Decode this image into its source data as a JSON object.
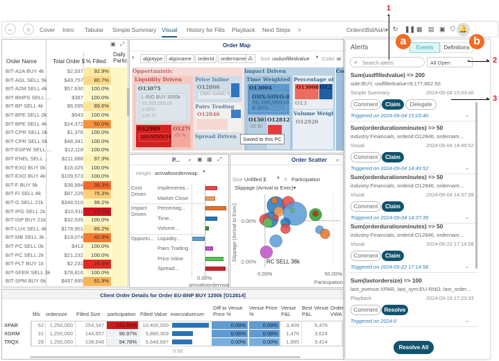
{
  "toolbar": {
    "tabs": [
      "Cover",
      "Intro",
      "Tabular",
      "Simple Summary",
      "Visual",
      "History for Fills",
      "Playback",
      "Next Steps"
    ],
    "active_tab": "Visual",
    "more_label": ">",
    "datasource": "Orders\\BidAsk\\",
    "icons": [
      "back-icon",
      "home-icon",
      "refresh-icon",
      "pause-icon",
      "snapshot-icon",
      "pdf-icon",
      "excel-icon",
      "bookmark-icon",
      "bell-icon"
    ]
  },
  "order_table": {
    "columns": [
      "Order Name",
      "Total Order $",
      "% Filled",
      "Daily Partic"
    ],
    "rows": [
      {
        "name": "BIT-A2A BUY 4k",
        "total": "$2,037",
        "filled": "92.9%",
        "color": "#fdeba5"
      },
      {
        "name": "BIT-AGL SELL 5k",
        "total": "$49,757",
        "filled": "80.7%",
        "color": "#fdd988"
      },
      {
        "name": "BIT-A2M SELL 4k",
        "total": "$57,630",
        "filled": "100.0%",
        "color": "#fef8c9"
      },
      {
        "name": "BIT-BMPS SELL ...",
        "total": "$387",
        "filled": "100.0%",
        "color": "#fef8c9"
      },
      {
        "name": "BIT-BP SELL 4k",
        "total": "$6,095",
        "filled": "89.6%",
        "color": "#fde49a"
      },
      {
        "name": "BIT-BPE SELL 0k",
        "total": "$543",
        "filled": "100.0%",
        "color": "#fef8c9"
      },
      {
        "name": "BIT-BPE SELL 4k",
        "total": "$24,372",
        "filled": "50.0%",
        "color": "#f7923a"
      },
      {
        "name": "BIT-CPR SELL 0k",
        "total": "$1,378",
        "filled": "100.0%",
        "color": "#fef8c9"
      },
      {
        "name": "BIT-CPR SELL 6k",
        "total": "$48,341",
        "filled": "100.0%",
        "color": "#fef8c9"
      },
      {
        "name": "BIT-EGPW SELL ...",
        "total": "$12,118",
        "filled": "100.0%",
        "color": "#fef8c9"
      },
      {
        "name": "BIT-ENEL SELL ...",
        "total": "$211,688",
        "filled": "97.3%",
        "color": "#fef2b4"
      },
      {
        "name": "BIT-EXO BUY 0k",
        "total": "$16,025",
        "filled": "100.0%",
        "color": "#fef8c9"
      },
      {
        "name": "BIT-EXO BUY 4k",
        "total": "$109,573",
        "filled": "100.0%",
        "color": "#fef8c9"
      },
      {
        "name": "BIT-F BUY 9k",
        "total": "$38,994",
        "filled": "39.3%",
        "color": "#f3692c"
      },
      {
        "name": "BIT-FI SELL 8k",
        "total": "$87,225",
        "filled": "75.3%",
        "color": "#fdce7b"
      },
      {
        "name": "BIT-G SELL 21k",
        "total": "$348,010",
        "filled": "99.2%",
        "color": "#fef6c2"
      },
      {
        "name": "BIT-IPG SELL 2k",
        "total": "$10,911",
        "filled": "13.3%",
        "color": "#d0111f"
      },
      {
        "name": "BIT-ISP BUY 21k",
        "total": "$32,535",
        "filled": "100.0%",
        "color": "#fef8c9"
      },
      {
        "name": "BIT-LUX SELL 4k",
        "total": "$178,901",
        "filled": "89.2%",
        "color": "#fde49a"
      },
      {
        "name": "BIT-MB SELL 3k",
        "total": "$19,074",
        "filled": "42.9%",
        "color": "#f47932"
      },
      {
        "name": "BIT-PC SELL 0k",
        "total": "$413",
        "filled": "100.0%",
        "color": "#fef8c9"
      },
      {
        "name": "BIT-PC SELL 2k",
        "total": "$21,232",
        "filled": "100.0%",
        "color": "#fef8c9"
      },
      {
        "name": "BIT-PLT BUY 1k",
        "total": "$2,231",
        "filled": "26.4%",
        "color": "#e12b22"
      },
      {
        "name": "BIT-SFER SELL 3k",
        "total": "$78,816",
        "filled": "100.0%",
        "color": "#fef8c9"
      },
      {
        "name": "BIT-SPM BUY 6k",
        "total": "$497,695",
        "filled": "61.9%",
        "color": "#fbb35a"
      }
    ]
  },
  "order_map": {
    "title": "Order Map",
    "chips": [
      "algotype",
      "algoname",
      "orderid",
      "ordername"
    ],
    "size_label": "Size",
    "size_value": "usdunfilledvalue",
    "color_label": "Color",
    "color_value": "ar",
    "groups": {
      "opportunistic": "Opportunistic",
      "liquidity": "Liquidity Driven",
      "price_inline": "Price Inline",
      "pairs": "Pairs Trading",
      "spread": "Spread Driven",
      "impact": "Impact Driven",
      "twap": "Time Weighted A",
      "pct": "Percentage of",
      "volume": "Volume Weigh",
      "cost": "Cos",
      "cost_sub": "Im",
      "market": "Ma"
    },
    "cells": {
      "o13075": "O13075",
      "o13075_detail": [
        "L-RIO BUY 3000k",
        "93,300,000.00",
        "0.06%",
        "229.37"
      ],
      "o12989": "O12989",
      "o12989_detail": "SIX-NOVN SE",
      "o1279": "O1279",
      "o1279_detail": "XE-N",
      "o12806": "O12806",
      "o12806_detail": "OMX-SAND E",
      "o12846": "O12846",
      "o13004": "O13004",
      "o13004_detail": [
        "OMX-NOVO-B",
        "56,400,000.00",
        "0.30%"
      ],
      "o1301": "O1301",
      "o1301_detail": "XE-B/",
      "o12812": "O12812",
      "o13008": "O13008",
      "o12x": "O12",
      "o13x": "O13",
      "o12920": "O12920",
      "cost_o": "O"
    },
    "tooltip": "Saved to this PC"
  },
  "bar_panel": {
    "title": "P...",
    "height_label": "Height",
    "height_value": "arrivaltoordervwap",
    "axis_tick": "0.00%",
    "axis_label": "arrivaltoordervwa",
    "groups": [
      {
        "name": "Cost Driven",
        "items": [
          {
            "label": "Implementa...",
            "value": 0.55,
            "color": "#e8474a"
          },
          {
            "label": "Market Close",
            "value": 0.45,
            "color": "#fb9a52"
          }
        ]
      },
      {
        "name": "Impact Driven",
        "items": [
          {
            "label": "Percentag...",
            "value": 1.0,
            "color": "#e4732a"
          },
          {
            "label": "Time...",
            "value": 0.55,
            "color": "#2178be"
          },
          {
            "label": "Volume...",
            "value": 0.15,
            "color": "#2ca02c"
          }
        ]
      },
      {
        "name": "Opportu...",
        "items": [
          {
            "label": "Liquidity...",
            "value": -0.65,
            "color": "#5b9bd5"
          },
          {
            "label": "Pairs Trading",
            "value": 0.35,
            "color": "#c050c8"
          },
          {
            "label": "Price Inline",
            "value": 0.85,
            "color": "#59c459"
          },
          {
            "label": "Spread...",
            "value": 0.95,
            "color": "#d2222a"
          }
        ]
      }
    ]
  },
  "scatter": {
    "title": "Order Scatter",
    "size_label": "Size",
    "size_value": "Unfilled $",
    "x_label": "X",
    "x_value": "Participation",
    "y_value": "Slippage (Arrival to Exec)",
    "y_axis_title": "Slippage (Arrival to Exec)",
    "x_axis_title": "Participation",
    "y_ticks": [
      "0.00%",
      "-2.00%"
    ],
    "x_ticks": [
      "0.00%",
      "50.00%"
    ],
    "annotation": "RC SELL 38k"
  },
  "chart_data": {
    "type": "scatter",
    "title": "Order Scatter",
    "xlabel": "Participation",
    "ylabel": "Slippage (Arrival to Exec)",
    "xlim": [
      -5,
      55
    ],
    "ylim": [
      -2.3,
      1.3
    ],
    "points": [
      {
        "x": 8,
        "y": 0.75,
        "r": 13,
        "color": "#2178be"
      },
      {
        "x": 17,
        "y": 0.9,
        "r": 9,
        "color": "#e8474a"
      },
      {
        "x": 22,
        "y": 0.35,
        "r": 17,
        "color": "#5b9bd5"
      },
      {
        "x": 4,
        "y": 0.05,
        "r": 11,
        "color": "#2178be"
      },
      {
        "x": 0,
        "y": 0.05,
        "r": 8,
        "color": "#e8474a"
      },
      {
        "x": 2,
        "y": -0.1,
        "r": 7,
        "color": "#59c459"
      },
      {
        "x": 10,
        "y": 0.45,
        "r": 7,
        "color": "#fb9a52"
      },
      {
        "x": 7,
        "y": 1.0,
        "r": 5,
        "color": "#e4732a"
      },
      {
        "x": 37,
        "y": 0.3,
        "r": 9,
        "color": "#2ca02c"
      },
      {
        "x": 37,
        "y": 0.35,
        "r": 4,
        "color": "#d2222a"
      },
      {
        "x": 15,
        "y": -0.1,
        "r": 7,
        "color": "#2178be"
      },
      {
        "x": 15,
        "y": -0.4,
        "r": 7,
        "color": "#e8474a"
      },
      {
        "x": 40,
        "y": -0.45,
        "r": 6,
        "color": "#5b9bd5"
      },
      {
        "x": 44,
        "y": -0.65,
        "r": 7,
        "color": "#e4732a"
      },
      {
        "x": 8,
        "y": -1.0,
        "r": 9,
        "color": "#5b9bd5"
      },
      {
        "x": 1,
        "y": -1.55,
        "r": 9,
        "color": "#c050c8"
      },
      {
        "x": 8,
        "y": 0.15,
        "r": 4,
        "color": "#e8474a"
      },
      {
        "x": 20,
        "y": 0.5,
        "r": 3,
        "color": "#59c459"
      }
    ]
  },
  "client_details": {
    "title": "Client Order Details for Order EU-BNP BUY 1250k [O12814]",
    "columns": [
      "fills",
      "ordersize",
      "Filled Size",
      "participation",
      "Filled Value",
      "execvaluecum",
      "Diff to Venue Price %",
      "Diff to Best Venue Price %",
      "Venue P&L",
      "Best Venue P&L",
      "Order VWA"
    ],
    "rows": [
      {
        "venue": "XPAR",
        "fills": "52",
        "ordersize": "1,250,000",
        "filled_size": "254,347",
        "participation": "192.86%",
        "filled_value": "10,400,000",
        "execvaluecum": 1.0,
        "diff_venue": "0.09%",
        "diff_best": "0.09%",
        "venue_pl": "3,409",
        "best_pl": "5,476"
      },
      {
        "venue": "XGRM",
        "fills": "31",
        "ordersize": "1,250,000",
        "filled_size": "144,657",
        "participation": "96.97%",
        "filled_value": "5,890,309",
        "execvaluecum": 0.57,
        "diff_venue": "0.06%",
        "diff_best": "0.08%",
        "venue_pl": "1,476",
        "best_pl": "3,624"
      },
      {
        "venue": "TRQX",
        "fills": "28",
        "ordersize": "1,250,000",
        "filled_size": "138,648",
        "participation": "94.78%",
        "filled_value": "5,648,697",
        "execvaluecum": 0.54,
        "diff_venue": "0.00%",
        "diff_best": "0.00%",
        "venue_pl": "1,895",
        "best_pl": "3,414"
      }
    ],
    "footer": "0.00"
  },
  "alerts": {
    "title": "Alerts",
    "tabs": [
      "Events",
      "Definitions"
    ],
    "search_placeholder": "Search alerts",
    "filter": "All Open",
    "items": [
      {
        "title": "Sum(usdfilledvalue) => 200",
        "detail": "side:BUY, usdfilledvalue=9,177,862.50",
        "source": "Simple Summary",
        "time": "2024-09-04 15:03:40",
        "buttons": [
          "Comment",
          "Claim",
          "Delegate"
        ],
        "triggered": "Triggered on 2024-09-04 15:03:40"
      },
      {
        "title": "Sum(orderdurationminutes) => 50",
        "detail": "industry:Financials, orderid:O12846, ordernam...",
        "source": "Visual",
        "time": "2024-09-04 14:49:52",
        "buttons": [
          "Comment",
          "Claim"
        ],
        "triggered": "Triggered on 2024-09-04 14:49:52"
      },
      {
        "title": "Sum(orderdurationminutes) => 50",
        "detail": "industry:Financials, orderid:O12846, ordernam...",
        "source": "Visual",
        "time": "2024-09-04 14:37:39",
        "buttons": [
          "Comment",
          "Claim"
        ],
        "triggered": "Triggered on 2024-09-04 14:37:39"
      },
      {
        "title": "Sum(orderdurationminutes) => 50",
        "detail": "industry:Financials, orderid:O12846, ordernam...",
        "source": "Visual",
        "time": "2024-05-22 17:14:58",
        "buttons": [
          "Comment",
          "Claim"
        ],
        "triggered": "Triggered on 2024-05-22 17:14:58"
      },
      {
        "title": "Sum(lastordersize) => 100",
        "detail": "last_pvenue:XPAR, last_sym:EU-RNO, last_order...",
        "source": "Playback",
        "time": "2024-03-19 17:23:33",
        "buttons": [
          "Comment",
          "Resolve"
        ],
        "triggered": "Triggered on 2024-0"
      }
    ],
    "resolve_all": "Resolve All"
  },
  "annotations": {
    "callout_a": "a",
    "callout_b": "b",
    "num1": "1",
    "num2": "2",
    "num3": "3",
    "accent": "#f26b22",
    "number_color": "#e0121f"
  }
}
